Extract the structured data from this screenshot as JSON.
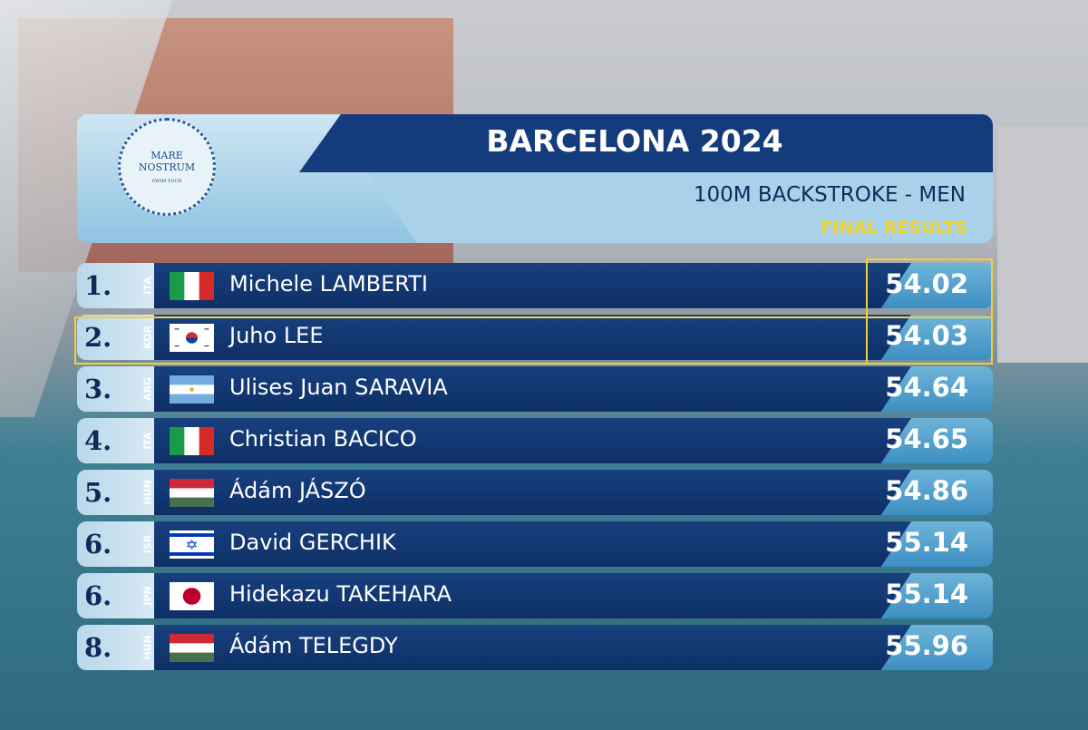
{
  "header": {
    "logo_line1": "MARE",
    "logo_line2": "NOSTRUM",
    "logo_line3": "SWIM TOUR",
    "title": "BARCELONA 2024",
    "event": "100M BACKSTROKE - MEN",
    "subtitle": "FINAL RESULTS"
  },
  "results": [
    {
      "rank": "1.",
      "country": "ITA",
      "name": "Michele LAMBERTI",
      "time": "54.02"
    },
    {
      "rank": "2.",
      "country": "KOR",
      "name": "Juho LEE",
      "time": "54.03"
    },
    {
      "rank": "3.",
      "country": "ARG",
      "name": "Ulises Juan SARAVIA",
      "time": "54.64"
    },
    {
      "rank": "4.",
      "country": "ITA",
      "name": "Christian BACICO",
      "time": "54.65"
    },
    {
      "rank": "5.",
      "country": "HUN",
      "name": "Ádám JÁSZÓ",
      "time": "54.86"
    },
    {
      "rank": "6.",
      "country": "ISR",
      "name": "David GERCHIK",
      "time": "55.14"
    },
    {
      "rank": "6.",
      "country": "JPN",
      "name": "Hidekazu TAKEHARA",
      "time": "55.14"
    },
    {
      "rank": "8.",
      "country": "HUN",
      "name": "Ádám TELEGDY",
      "time": "55.96"
    }
  ]
}
